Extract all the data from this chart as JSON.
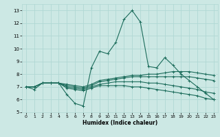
{
  "xlabel": "Humidex (Indice chaleur)",
  "bg_color": "#cce8e4",
  "grid_color": "#b0d8d4",
  "line_color": "#1a6b5a",
  "xlim": [
    -0.5,
    23.5
  ],
  "ylim": [
    5,
    13.5
  ],
  "yticks": [
    5,
    6,
    7,
    8,
    9,
    10,
    11,
    12,
    13
  ],
  "xticks": [
    0,
    1,
    2,
    3,
    4,
    5,
    6,
    7,
    8,
    9,
    10,
    11,
    12,
    13,
    14,
    15,
    16,
    17,
    18,
    19,
    20,
    21,
    22,
    23
  ],
  "series": [
    [
      7.0,
      6.8,
      7.3,
      7.3,
      7.3,
      6.4,
      5.7,
      5.5,
      8.5,
      9.8,
      9.6,
      10.5,
      12.3,
      13.0,
      12.1,
      8.6,
      8.5,
      9.3,
      8.7,
      8.0,
      7.5,
      7.0,
      6.5,
      6.0
    ],
    [
      7.0,
      7.0,
      7.3,
      7.3,
      7.3,
      7.2,
      7.1,
      7.0,
      7.2,
      7.5,
      7.6,
      7.7,
      7.8,
      7.9,
      7.9,
      8.0,
      8.0,
      8.1,
      8.2,
      8.2,
      8.2,
      8.1,
      8.0,
      7.9
    ],
    [
      7.0,
      7.0,
      7.3,
      7.3,
      7.3,
      7.1,
      7.0,
      6.9,
      7.1,
      7.4,
      7.5,
      7.6,
      7.7,
      7.8,
      7.8,
      7.8,
      7.8,
      7.8,
      7.8,
      7.8,
      7.8,
      7.7,
      7.6,
      7.5
    ],
    [
      7.0,
      7.0,
      7.3,
      7.3,
      7.3,
      7.0,
      6.9,
      6.8,
      7.0,
      7.2,
      7.3,
      7.4,
      7.4,
      7.4,
      7.4,
      7.3,
      7.3,
      7.2,
      7.1,
      7.0,
      6.9,
      6.8,
      6.6,
      6.5
    ],
    [
      7.0,
      7.0,
      7.3,
      7.3,
      7.3,
      6.9,
      6.8,
      6.7,
      6.9,
      7.1,
      7.1,
      7.1,
      7.1,
      7.0,
      7.0,
      6.9,
      6.8,
      6.7,
      6.6,
      6.5,
      6.4,
      6.3,
      6.1,
      6.0
    ]
  ]
}
